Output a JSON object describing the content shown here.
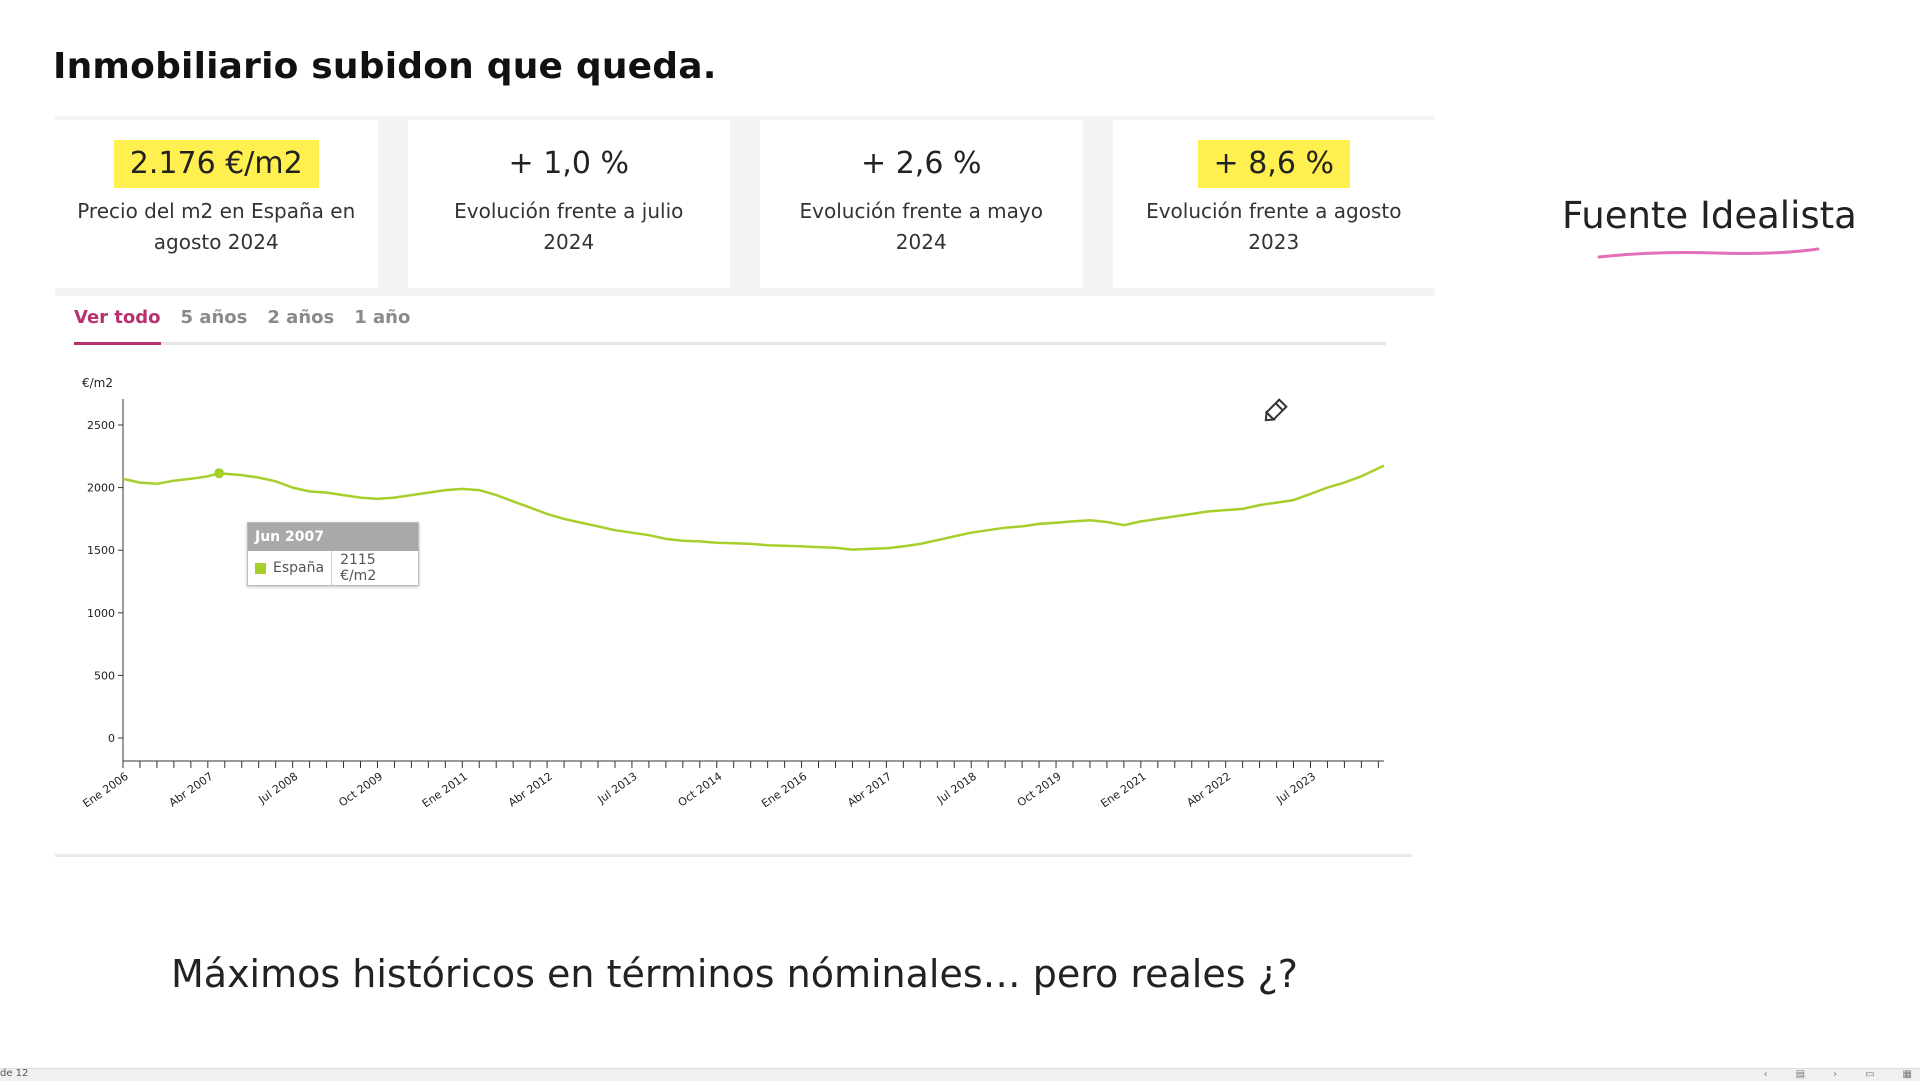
{
  "slide": {
    "title": "Inmobiliario subidon que queda.",
    "source": "Fuente Idealista",
    "caption": "Máximos históricos en términos nóminales… pero reales ¿?",
    "highlight_color": "#fff050",
    "underline_color": "#e26fb8"
  },
  "cards": [
    {
      "value": "2.176 €/m2",
      "label": "Precio del m2 en España en agosto 2024",
      "highlight": true
    },
    {
      "value": "+ 1,0 %",
      "label": "Evolución frente a julio 2024",
      "highlight": false
    },
    {
      "value": "+ 2,6 %",
      "label": "Evolución frente a mayo 2024",
      "highlight": false
    },
    {
      "value": "+ 8,6 %",
      "label": "Evolución frente a agosto 2023",
      "highlight": true
    }
  ],
  "tabs": [
    {
      "label": "Ver todo",
      "active": true
    },
    {
      "label": "5 años",
      "active": false
    },
    {
      "label": "2 años",
      "active": false
    },
    {
      "label": "1 año",
      "active": false
    }
  ],
  "tooltip": {
    "title": "Jun 2007",
    "series": "España",
    "value": "2115 €/m2"
  },
  "status_bar": {
    "slide_count": "de 12",
    "icons": [
      "chevron-left-icon",
      "notes-icon",
      "chevron-right-icon",
      "normal-view-icon",
      "grid-view-icon"
    ]
  },
  "chart_data": {
    "type": "line",
    "ylabel": "€/m2",
    "xlabel": "",
    "ylim": [
      0,
      2500
    ],
    "yticks": [
      0,
      500,
      1000,
      1500,
      2000,
      2500
    ],
    "xlim": [
      "2006-01",
      "2024-08"
    ],
    "xtick_labels": [
      "Ene 2006",
      "Abr 2007",
      "Jul 2008",
      "Oct 2009",
      "Ene 2011",
      "Abr 2012",
      "Jul 2013",
      "Oct 2014",
      "Ene 2016",
      "Abr 2017",
      "Jul 2018",
      "Oct 2019",
      "Ene 2021",
      "Abr 2022",
      "Jul 2023"
    ],
    "grid": false,
    "line_color": "#a6cf2b",
    "highlight_point": {
      "x": "2007-06",
      "y": 2115
    },
    "series": [
      {
        "name": "España",
        "x": [
          "2006-01",
          "2006-04",
          "2006-07",
          "2006-10",
          "2007-01",
          "2007-04",
          "2007-06",
          "2007-10",
          "2008-01",
          "2008-04",
          "2008-07",
          "2008-10",
          "2009-01",
          "2009-04",
          "2009-07",
          "2009-10",
          "2010-01",
          "2010-04",
          "2010-07",
          "2010-10",
          "2011-01",
          "2011-04",
          "2011-07",
          "2011-10",
          "2012-01",
          "2012-04",
          "2012-07",
          "2012-10",
          "2013-01",
          "2013-04",
          "2013-07",
          "2013-10",
          "2014-01",
          "2014-04",
          "2014-07",
          "2014-10",
          "2015-01",
          "2015-04",
          "2015-07",
          "2015-10",
          "2016-01",
          "2016-04",
          "2016-07",
          "2016-10",
          "2017-01",
          "2017-04",
          "2017-07",
          "2017-10",
          "2018-01",
          "2018-04",
          "2018-07",
          "2018-10",
          "2019-01",
          "2019-04",
          "2019-07",
          "2019-10",
          "2020-01",
          "2020-04",
          "2020-07",
          "2020-10",
          "2021-01",
          "2021-04",
          "2021-07",
          "2021-10",
          "2022-01",
          "2022-04",
          "2022-07",
          "2022-10",
          "2023-01",
          "2023-04",
          "2023-07",
          "2023-10",
          "2024-01",
          "2024-04",
          "2024-08"
        ],
        "values": [
          2070,
          2040,
          2030,
          2055,
          2070,
          2090,
          2115,
          2100,
          2080,
          2050,
          2000,
          1970,
          1960,
          1940,
          1920,
          1910,
          1920,
          1940,
          1960,
          1980,
          1990,
          1980,
          1940,
          1890,
          1840,
          1790,
          1750,
          1720,
          1690,
          1660,
          1640,
          1620,
          1590,
          1575,
          1570,
          1560,
          1555,
          1550,
          1540,
          1535,
          1530,
          1525,
          1520,
          1505,
          1510,
          1515,
          1530,
          1550,
          1580,
          1610,
          1640,
          1660,
          1680,
          1690,
          1710,
          1720,
          1730,
          1740,
          1725,
          1700,
          1730,
          1750,
          1770,
          1790,
          1810,
          1820,
          1830,
          1860,
          1880,
          1900,
          1950,
          2000,
          2040,
          2090,
          2176
        ]
      }
    ]
  }
}
